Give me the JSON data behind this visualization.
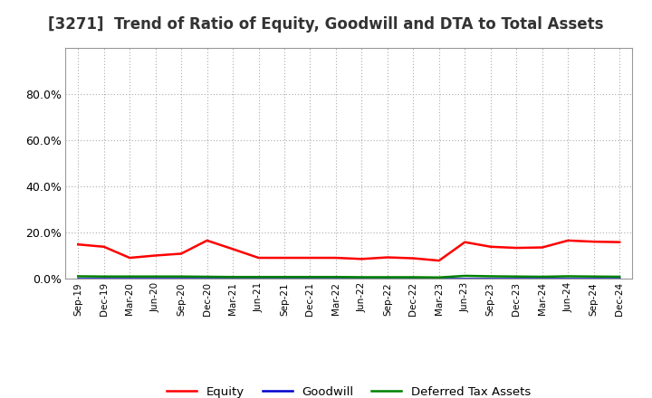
{
  "title": "[3271]  Trend of Ratio of Equity, Goodwill and DTA to Total Assets",
  "x_labels": [
    "Sep-19",
    "Dec-19",
    "Mar-20",
    "Jun-20",
    "Sep-20",
    "Dec-20",
    "Mar-21",
    "Jun-21",
    "Sep-21",
    "Dec-21",
    "Mar-22",
    "Jun-22",
    "Sep-22",
    "Dec-22",
    "Mar-23",
    "Jun-23",
    "Sep-23",
    "Dec-23",
    "Mar-24",
    "Jun-24",
    "Sep-24",
    "Dec-24"
  ],
  "equity": [
    0.148,
    0.138,
    0.09,
    0.1,
    0.108,
    0.165,
    0.128,
    0.09,
    0.09,
    0.09,
    0.09,
    0.085,
    0.092,
    0.088,
    0.078,
    0.158,
    0.138,
    0.133,
    0.135,
    0.165,
    0.16,
    0.158
  ],
  "goodwill": [
    0.001,
    0.001,
    0.001,
    0.001,
    0.001,
    0.001,
    0.001,
    0.001,
    0.001,
    0.001,
    0.001,
    0.001,
    0.001,
    0.001,
    0.001,
    0.001,
    0.001,
    0.001,
    0.001,
    0.001,
    0.001,
    0.001
  ],
  "dta": [
    0.01,
    0.009,
    0.009,
    0.009,
    0.009,
    0.008,
    0.007,
    0.007,
    0.007,
    0.007,
    0.007,
    0.006,
    0.006,
    0.006,
    0.005,
    0.012,
    0.01,
    0.009,
    0.008,
    0.01,
    0.009,
    0.008
  ],
  "equity_color": "#ff0000",
  "goodwill_color": "#0000cc",
  "dta_color": "#008000",
  "ylim_min": 0.0,
  "ylim_max": 1.0,
  "yticks": [
    0.0,
    0.2,
    0.4,
    0.6,
    0.8
  ],
  "ytick_labels": [
    "0.0%",
    "20.0%",
    "40.0%",
    "60.0%",
    "80.0%"
  ],
  "background_color": "#ffffff",
  "grid_color": "#aaaaaa",
  "title_fontsize": 12,
  "legend_labels": [
    "Equity",
    "Goodwill",
    "Deferred Tax Assets"
  ],
  "line_width": 1.8
}
